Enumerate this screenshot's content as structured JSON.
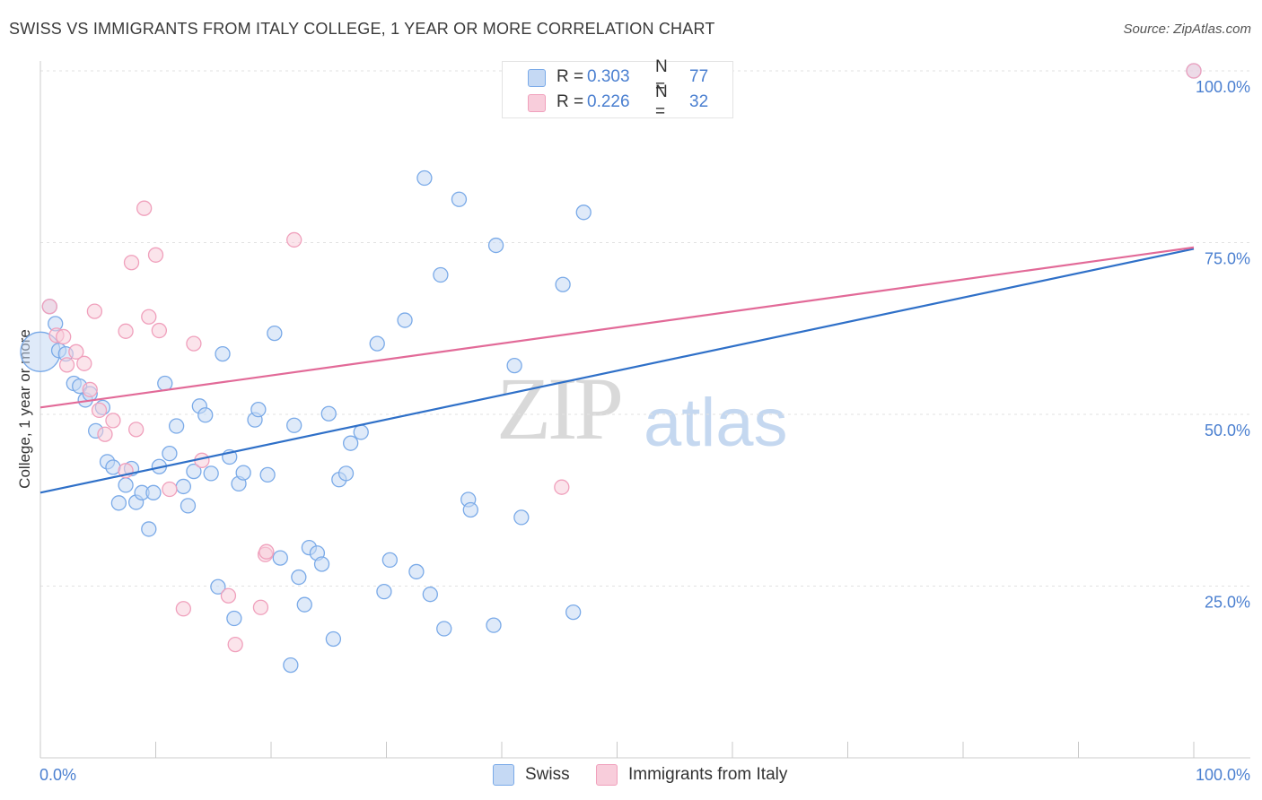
{
  "chart_data": {
    "type": "scatter",
    "title": "SWISS VS IMMIGRANTS FROM ITALY COLLEGE, 1 YEAR OR MORE CORRELATION CHART",
    "source": "Source: ZipAtlas.com",
    "ylabel": "College, 1 year or more",
    "xlim": [
      0,
      100
    ],
    "ylim": [
      0,
      100
    ],
    "x_tick_labels": {
      "left": "0.0%",
      "right": "100.0%"
    },
    "y_tick_labels": [
      {
        "value": 100,
        "label": "100.0%"
      },
      {
        "value": 75,
        "label": "75.0%"
      },
      {
        "value": 50,
        "label": "50.0%"
      },
      {
        "value": 25,
        "label": "25.0%"
      }
    ],
    "watermark": {
      "part1": "ZIP",
      "part2": "atlas"
    },
    "legend": [
      {
        "r_label": "R =",
        "r_value": "0.303",
        "n_label": "N =",
        "n_value": "77"
      },
      {
        "r_label": "R =",
        "r_value": "0.226",
        "n_label": "N =",
        "n_value": "32"
      }
    ],
    "series": [
      {
        "name": "Swiss",
        "color": "#7aaae8",
        "fill": "#c5d9f4",
        "line_color": "#2f70c8",
        "trend": {
          "x0": 0,
          "y0": 38.6,
          "x1": 100,
          "y1": 74.1
        },
        "points": [
          [
            0.0,
            59.1
          ],
          [
            0.8,
            65.7
          ],
          [
            1.3,
            63.2
          ],
          [
            1.6,
            59.3
          ],
          [
            2.2,
            58.8
          ],
          [
            2.9,
            54.5
          ],
          [
            3.4,
            54.1
          ],
          [
            3.9,
            52.1
          ],
          [
            4.3,
            53.0
          ],
          [
            4.8,
            47.6
          ],
          [
            5.4,
            51.0
          ],
          [
            5.8,
            43.1
          ],
          [
            6.3,
            42.3
          ],
          [
            6.8,
            37.1
          ],
          [
            7.4,
            39.7
          ],
          [
            7.9,
            42.1
          ],
          [
            8.3,
            37.2
          ],
          [
            8.8,
            38.6
          ],
          [
            9.4,
            33.3
          ],
          [
            9.8,
            38.6
          ],
          [
            10.3,
            42.4
          ],
          [
            10.8,
            54.5
          ],
          [
            11.2,
            44.3
          ],
          [
            11.8,
            48.3
          ],
          [
            12.4,
            39.5
          ],
          [
            12.8,
            36.7
          ],
          [
            13.3,
            41.7
          ],
          [
            13.8,
            51.2
          ],
          [
            14.3,
            49.9
          ],
          [
            14.8,
            41.4
          ],
          [
            15.4,
            24.9
          ],
          [
            15.8,
            58.8
          ],
          [
            16.4,
            43.8
          ],
          [
            16.8,
            20.3
          ],
          [
            17.2,
            39.9
          ],
          [
            17.6,
            41.5
          ],
          [
            18.6,
            49.2
          ],
          [
            18.9,
            50.7
          ],
          [
            19.7,
            41.2
          ],
          [
            20.3,
            61.8
          ],
          [
            20.8,
            29.1
          ],
          [
            21.7,
            13.5
          ],
          [
            22.0,
            48.4
          ],
          [
            22.4,
            26.3
          ],
          [
            22.9,
            22.3
          ],
          [
            23.3,
            30.6
          ],
          [
            24.0,
            29.8
          ],
          [
            24.4,
            28.2
          ],
          [
            25.0,
            50.1
          ],
          [
            25.4,
            17.3
          ],
          [
            25.9,
            40.5
          ],
          [
            26.5,
            41.4
          ],
          [
            26.9,
            45.8
          ],
          [
            27.8,
            47.4
          ],
          [
            29.2,
            60.3
          ],
          [
            29.8,
            24.2
          ],
          [
            30.3,
            28.8
          ],
          [
            31.6,
            63.7
          ],
          [
            32.6,
            27.1
          ],
          [
            33.3,
            84.4
          ],
          [
            33.8,
            23.8
          ],
          [
            34.7,
            70.3
          ],
          [
            35.0,
            18.8
          ],
          [
            36.3,
            81.3
          ],
          [
            37.1,
            37.6
          ],
          [
            37.3,
            36.1
          ],
          [
            39.3,
            19.3
          ],
          [
            39.5,
            74.6
          ],
          [
            41.1,
            57.1
          ],
          [
            41.7,
            35.0
          ],
          [
            45.3,
            68.9
          ],
          [
            46.2,
            21.2
          ],
          [
            47.1,
            79.4
          ],
          [
            100.0,
            100.0
          ]
        ]
      },
      {
        "name": "Immigrants from Italy",
        "color": "#f0a0bc",
        "fill": "#f8cddb",
        "line_color": "#e26a98",
        "trend": {
          "x0": 0,
          "y0": 51.0,
          "x1": 100,
          "y1": 74.3
        },
        "points": [
          [
            0.8,
            65.7
          ],
          [
            1.4,
            61.5
          ],
          [
            2.0,
            61.3
          ],
          [
            2.3,
            57.2
          ],
          [
            3.1,
            59.1
          ],
          [
            3.8,
            57.4
          ],
          [
            4.3,
            53.6
          ],
          [
            4.7,
            65.0
          ],
          [
            5.1,
            50.6
          ],
          [
            5.6,
            47.1
          ],
          [
            6.3,
            49.1
          ],
          [
            7.4,
            41.8
          ],
          [
            7.4,
            62.1
          ],
          [
            7.9,
            72.1
          ],
          [
            8.3,
            47.8
          ],
          [
            9.0,
            80.0
          ],
          [
            9.4,
            64.2
          ],
          [
            10.0,
            73.2
          ],
          [
            10.3,
            62.2
          ],
          [
            11.2,
            39.1
          ],
          [
            12.4,
            21.7
          ],
          [
            13.3,
            60.3
          ],
          [
            14.0,
            43.3
          ],
          [
            16.3,
            23.6
          ],
          [
            16.9,
            16.5
          ],
          [
            19.1,
            21.9
          ],
          [
            19.5,
            29.6
          ],
          [
            19.6,
            30.0
          ],
          [
            22.0,
            75.4
          ],
          [
            45.2,
            39.4
          ],
          [
            100.0,
            100.0
          ]
        ]
      }
    ]
  }
}
